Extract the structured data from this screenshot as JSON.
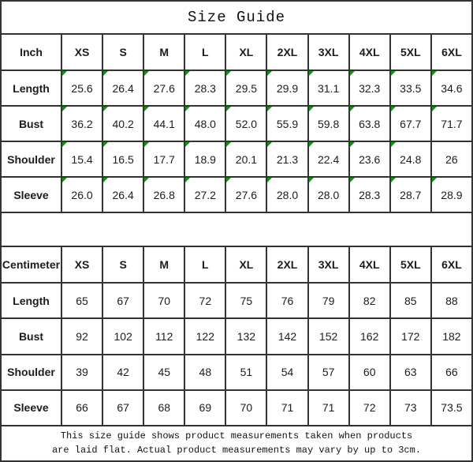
{
  "title": "Size Guide",
  "colors": {
    "border": "#333333",
    "marker_green": "#00a000"
  },
  "sizes": [
    "XS",
    "S",
    "M",
    "L",
    "XL",
    "2XL",
    "3XL",
    "4XL",
    "5XL",
    "6XL"
  ],
  "tables": [
    {
      "id": "inch",
      "unit": "Inch",
      "green_markers": true,
      "rows": [
        {
          "label": "Length",
          "values": [
            "25.6",
            "26.4",
            "27.6",
            "28.3",
            "29.5",
            "29.9",
            "31.1",
            "32.3",
            "33.5",
            "34.6"
          ]
        },
        {
          "label": "Bust",
          "values": [
            "36.2",
            "40.2",
            "44.1",
            "48.0",
            "52.0",
            "55.9",
            "59.8",
            "63.8",
            "67.7",
            "71.7"
          ]
        },
        {
          "label": "Shoulder",
          "values": [
            "15.4",
            "16.5",
            "17.7",
            "18.9",
            "20.1",
            "21.3",
            "22.4",
            "23.6",
            "24.8",
            "26"
          ]
        },
        {
          "label": "Sleeve",
          "values": [
            "26.0",
            "26.4",
            "26.8",
            "27.2",
            "27.6",
            "28.0",
            "28.0",
            "28.3",
            "28.7",
            "28.9"
          ]
        }
      ]
    },
    {
      "id": "centimeter",
      "unit": "Centimeter",
      "green_markers": false,
      "rows": [
        {
          "label": "Length",
          "values": [
            "65",
            "67",
            "70",
            "72",
            "75",
            "76",
            "79",
            "82",
            "85",
            "88"
          ]
        },
        {
          "label": "Bust",
          "values": [
            "92",
            "102",
            "112",
            "122",
            "132",
            "142",
            "152",
            "162",
            "172",
            "182"
          ]
        },
        {
          "label": "Shoulder",
          "values": [
            "39",
            "42",
            "45",
            "48",
            "51",
            "54",
            "57",
            "60",
            "63",
            "66"
          ]
        },
        {
          "label": "Sleeve",
          "values": [
            "66",
            "67",
            "68",
            "69",
            "70",
            "71",
            "71",
            "72",
            "73",
            "73.5"
          ]
        }
      ]
    }
  ],
  "footer": {
    "line1": "This size guide shows product measurements taken when products",
    "line2": "are laid flat. Actual product measurements may vary by up to 3cm."
  }
}
